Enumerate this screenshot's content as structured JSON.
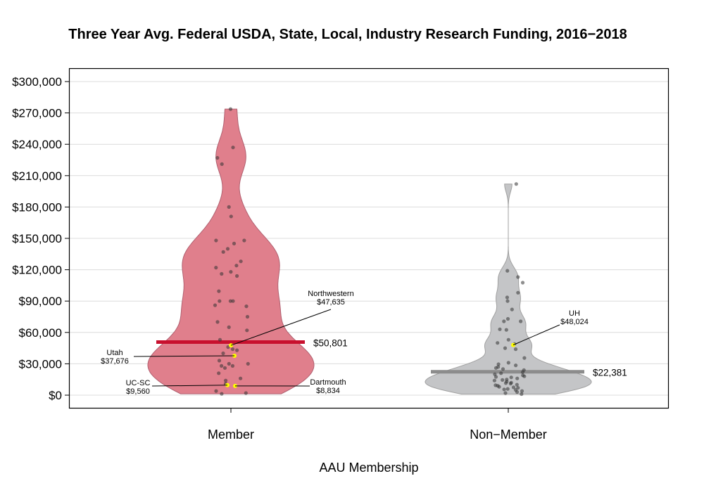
{
  "chart_data": {
    "type": "violin",
    "title": "Three Year Avg. Federal USDA, State, Local, Industry Research Funding, 2016−2018",
    "xlabel": "AAU Membership",
    "ylabel": "",
    "ylim": [
      -10000,
      310000
    ],
    "yticks": [
      0,
      30000,
      60000,
      90000,
      120000,
      150000,
      180000,
      210000,
      240000,
      270000,
      300000
    ],
    "ytick_labels": [
      "$0",
      "$30,000",
      "$60,000",
      "$90,000",
      "$120,000",
      "$150,000",
      "$180,000",
      "$210,000",
      "$240,000",
      "$270,000",
      "$300,000"
    ],
    "grid": "horizontal",
    "categories": [
      "Member",
      "Non−Member"
    ],
    "colors": {
      "Member": "#c8102e",
      "Non−Member": "#8c8c8c",
      "member_fill": "#e07f8c",
      "nonmember_fill": "#c4c5c7",
      "highlight": "#ffff00",
      "point": "#333333"
    },
    "series": [
      {
        "category": "Member",
        "summary_value": 50801,
        "summary_label": "$50,801",
        "points": [
          273700,
          237000,
          227000,
          221000,
          180000,
          171000,
          148000,
          148000,
          145000,
          140000,
          137000,
          128000,
          124000,
          122000,
          118000,
          116000,
          114000,
          99500,
          90000,
          90000,
          90000,
          86000,
          85000,
          75000,
          70000,
          65000,
          62000,
          53000,
          46000,
          44000,
          43000,
          40000,
          33000,
          30000,
          30000,
          28000,
          28000,
          26000,
          21000,
          16000,
          14000,
          11000,
          4000,
          2000,
          1300
        ],
        "highlighted": [
          {
            "name": "Northwestern",
            "value": 47635,
            "label": "$47,635"
          },
          {
            "name": "Utah",
            "value": 37676,
            "label": "$37,676"
          },
          {
            "name": "UC-SC",
            "value": 9560,
            "label": "$9,560"
          },
          {
            "name": "Dartmouth",
            "value": 8834,
            "label": "$8,834"
          }
        ]
      },
      {
        "category": "Non−Member",
        "summary_value": 22381,
        "summary_label": "$22,381",
        "points": [
          202000,
          119000,
          113000,
          107600,
          98000,
          93500,
          90000,
          82000,
          73000,
          70600,
          70600,
          63000,
          62500,
          53000,
          50000,
          49000,
          45000,
          44000,
          35600,
          31000,
          29600,
          28500,
          27000,
          26000,
          25000,
          24000,
          22000,
          21000,
          20000,
          19000,
          18000,
          17500,
          17000,
          16000,
          15000,
          14500,
          14000,
          13000,
          12000,
          11500,
          11000,
          10000,
          9500,
          9000,
          8000,
          7500,
          7000,
          6000,
          5500,
          5000,
          4000,
          3000,
          2000,
          1000
        ],
        "highlighted": [
          {
            "name": "UH",
            "value": 48024,
            "label": "$48,024"
          }
        ]
      }
    ]
  }
}
